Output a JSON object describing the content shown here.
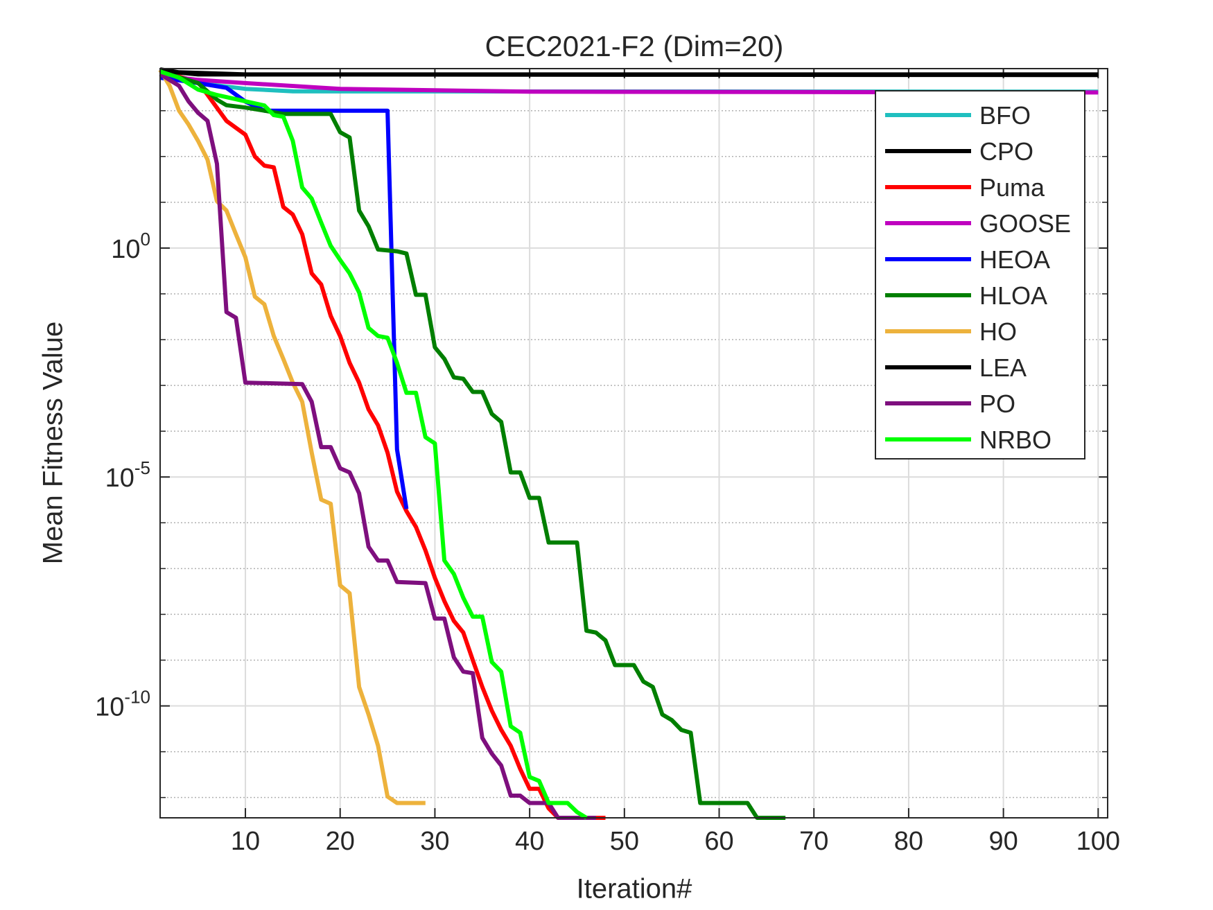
{
  "chart_data": {
    "type": "line",
    "title": "CEC2021-F2 (Dim=20)",
    "xlabel": "Iteration#",
    "ylabel": "Mean Fitness Value",
    "log_y": true,
    "grid": true,
    "yminor_grid": true,
    "legend": "northeast",
    "xlim": [
      1,
      101
    ],
    "xticks": [
      10,
      20,
      30,
      40,
      50,
      60,
      70,
      80,
      90,
      100
    ],
    "ylim": [
      3.6e-13,
      8300
    ],
    "yticks": [
      {
        "value": 1e-10,
        "label": "10^-10"
      },
      {
        "value": 1e-05,
        "label": "10^-5"
      },
      {
        "value": 1,
        "label": "10^0"
      }
    ],
    "series": [
      {
        "name": "BFO",
        "color": "#1fbfbf",
        "x": [
          1,
          5,
          10,
          15,
          100
        ],
        "values": [
          7000,
          4000,
          3000,
          2650,
          2600
        ]
      },
      {
        "name": "CPO",
        "color": "#000000",
        "x": [
          1,
          3,
          10,
          100
        ],
        "values": [
          8000,
          6900,
          6200,
          6200
        ]
      },
      {
        "name": "Puma",
        "color": "#ff0000",
        "x": [
          1,
          5,
          8,
          10,
          11,
          12,
          13,
          14,
          15,
          16,
          17,
          18,
          19,
          20,
          21,
          22,
          23,
          24,
          25,
          26,
          27,
          28,
          29,
          30,
          31,
          32,
          33,
          34,
          35,
          36,
          37,
          38,
          39,
          40,
          41,
          42,
          43,
          48
        ],
        "values": [
          7200,
          4300,
          600,
          300,
          100,
          63,
          58,
          7.9,
          5.4,
          2.0,
          0.28,
          0.16,
          0.033,
          0.012,
          0.0031,
          0.00115,
          0.0003,
          0.000135,
          3.4e-05,
          4.8e-06,
          1.8e-06,
          8.1e-07,
          2.5e-07,
          6.3e-08,
          1.95e-08,
          7.2e-09,
          4e-09,
          1e-09,
          2.6e-10,
          7.9e-11,
          3e-11,
          1.35e-11,
          4.2e-12,
          1.55e-12,
          1.55e-12,
          5.8e-13,
          3.6e-13,
          3.6e-13
        ]
      },
      {
        "name": "GOOSE",
        "color": "#bf00bf",
        "x": [
          1,
          5,
          10,
          20,
          40,
          100
        ],
        "values": [
          5900,
          4700,
          4000,
          3000,
          2600,
          2500
        ]
      },
      {
        "name": "HEOA",
        "color": "#0000ff",
        "x": [
          1,
          5,
          8,
          10,
          12,
          25,
          26,
          27
        ],
        "values": [
          5250,
          4000,
          3160,
          1580,
          1000,
          1000,
          4e-05,
          2e-06
        ]
      },
      {
        "name": "HLOA",
        "color": "#007f00",
        "x": [
          1,
          5,
          7,
          8,
          10,
          12,
          14,
          19,
          20,
          21,
          22,
          23,
          24,
          26,
          27,
          28,
          29,
          30,
          31,
          32,
          33,
          34,
          35,
          36,
          37,
          38,
          39,
          40,
          41,
          42,
          45,
          46,
          47,
          48,
          49,
          51,
          52,
          53,
          54,
          55,
          56,
          57,
          58,
          63,
          64,
          67
        ],
        "values": [
          7200,
          4000,
          1740,
          1320,
          1170,
          1000,
          850,
          850,
          340,
          260,
          6.6,
          3.0,
          0.93,
          0.85,
          0.76,
          0.095,
          0.095,
          0.0068,
          0.0038,
          0.0015,
          0.0014,
          0.00072,
          0.00072,
          0.00024,
          0.00016,
          1.26e-05,
          1.26e-05,
          3.5e-06,
          3.5e-06,
          3.7e-07,
          3.7e-07,
          4.4e-09,
          4e-09,
          2.7e-09,
          7.8e-10,
          7.8e-10,
          3.4e-10,
          2.6e-10,
          6.5e-11,
          4.9e-11,
          3e-11,
          2.6e-11,
          7.6e-13,
          7.6e-13,
          3.6e-13,
          3.6e-13
        ]
      },
      {
        "name": "HO",
        "color": "#edb23c",
        "x": [
          1,
          2,
          3,
          4,
          5,
          6,
          7,
          8,
          9,
          10,
          11,
          12,
          13,
          14,
          15,
          16,
          17,
          18,
          19,
          20,
          21,
          22,
          23,
          24,
          25,
          26,
          29
        ],
        "values": [
          7800,
          3500,
          1000,
          500,
          220,
          85,
          10.5,
          6.6,
          2.0,
          0.63,
          0.087,
          0.059,
          0.012,
          0.0038,
          0.00115,
          0.00044,
          3.4e-05,
          3.2e-06,
          2.6e-06,
          4.3e-08,
          2.9e-08,
          2.6e-10,
          6.5e-11,
          1.35e-11,
          1.05e-12,
          7.6e-13,
          7.6e-13
        ]
      },
      {
        "name": "LEA",
        "color": "#000000",
        "x": [
          1,
          5,
          100
        ],
        "values": [
          7500,
          6200,
          6000
        ]
      },
      {
        "name": "PO",
        "color": "#7e0f7e",
        "x": [
          1,
          3,
          4,
          5,
          6,
          7,
          8,
          9,
          10,
          16,
          17,
          18,
          19,
          20,
          21,
          22,
          23,
          24,
          25,
          26,
          29,
          30,
          31,
          32,
          33,
          34,
          35,
          36,
          37,
          38,
          39,
          40,
          42,
          43,
          47
        ],
        "values": [
          6300,
          3500,
          1600,
          900,
          600,
          69,
          0.04,
          0.03,
          0.00115,
          0.00107,
          0.00044,
          4.5e-05,
          4.5e-05,
          1.55e-05,
          1.26e-05,
          4.4e-06,
          3e-07,
          1.5e-07,
          1.5e-07,
          5.1e-08,
          4.8e-08,
          8.1e-09,
          8.1e-09,
          1.15e-09,
          5.6e-10,
          5.2e-10,
          2e-11,
          9.1e-12,
          5e-12,
          1.1e-12,
          1.1e-12,
          7.6e-13,
          7.6e-13,
          3.6e-13,
          3.6e-13
        ]
      },
      {
        "name": "NRBO",
        "color": "#00ff00",
        "x": [
          1,
          3,
          5,
          7,
          10,
          12,
          13,
          14,
          15,
          16,
          17,
          18,
          19,
          20,
          21,
          22,
          23,
          24,
          25,
          26,
          27,
          28,
          29,
          30,
          31,
          32,
          33,
          34,
          35,
          36,
          37,
          38,
          39,
          40,
          41,
          42,
          44,
          45,
          46
        ],
        "values": [
          7200,
          5250,
          2900,
          2200,
          1600,
          1300,
          800,
          740,
          220,
          21,
          12,
          3.6,
          1.12,
          0.55,
          0.28,
          0.107,
          0.018,
          0.012,
          0.011,
          0.0031,
          0.00069,
          0.00069,
          7.4e-05,
          5.4e-05,
          1.5e-07,
          7.6e-08,
          2.3e-08,
          8.9e-09,
          8.9e-09,
          9.1e-10,
          5.6e-10,
          3.6e-11,
          2.6e-11,
          2.8e-12,
          2.3e-12,
          7.6e-13,
          7.6e-13,
          4.8e-13,
          3.6e-13
        ]
      }
    ]
  }
}
